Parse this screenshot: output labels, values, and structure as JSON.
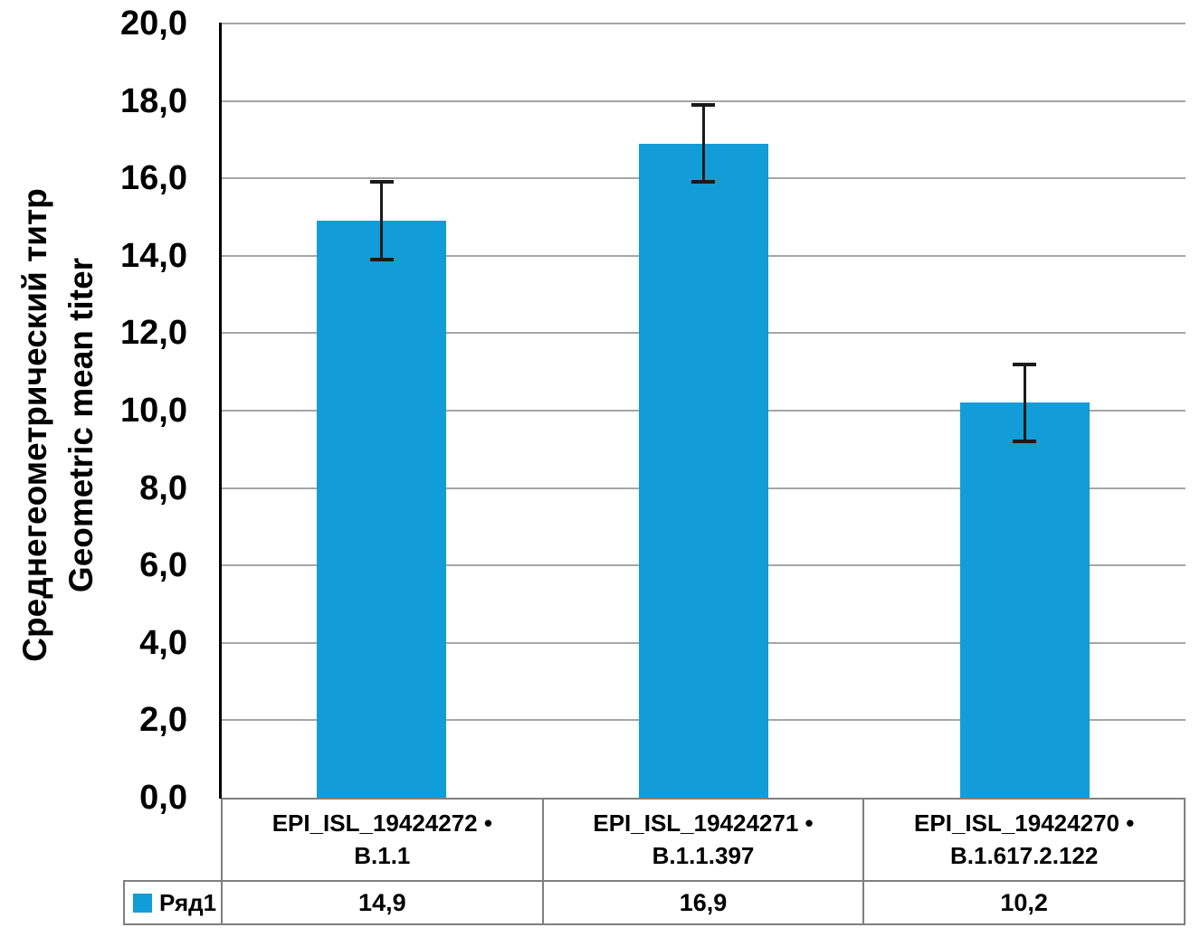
{
  "chart_data": {
    "type": "bar",
    "title": "",
    "ylabel_lines": [
      "Среднегеометрический титр",
      "Geometric mean titer"
    ],
    "xlabel": "",
    "categories": [
      {
        "line1": "EPI_ISL_19424272 •",
        "line2": "B.1.1"
      },
      {
        "line1": "EPI_ISL_19424271 •",
        "line2": "B.1.1.397"
      },
      {
        "line1": "EPI_ISL_19424270 •",
        "line2": "B.1.617.2.122"
      }
    ],
    "series": [
      {
        "name": "Ряд1",
        "values": [
          14.9,
          16.9,
          10.2
        ],
        "display_values": [
          "14,9",
          "16,9",
          "10,2"
        ],
        "errors": [
          1.0,
          1.0,
          1.0
        ]
      }
    ],
    "ylim": [
      0,
      20
    ],
    "ytick_step": 2,
    "yticks": [
      {
        "value": 20,
        "label": "20,0"
      },
      {
        "value": 18,
        "label": "18,0"
      },
      {
        "value": 16,
        "label": "16,0"
      },
      {
        "value": 14,
        "label": "14,0"
      },
      {
        "value": 12,
        "label": "12,0"
      },
      {
        "value": 10,
        "label": "10,0"
      },
      {
        "value": 8,
        "label": "8,0"
      },
      {
        "value": 6,
        "label": "6,0"
      },
      {
        "value": 4,
        "label": "4,0"
      },
      {
        "value": 2,
        "label": "2,0"
      },
      {
        "value": 0,
        "label": "0,0"
      }
    ],
    "grid": true,
    "legend_position": "bottom-table",
    "colors": {
      "bar": "#129cd8",
      "gridline": "#a6a6a6",
      "table_border": "#7f7f7f",
      "axis": "#000000",
      "text": "#000000",
      "background": "#ffffff"
    }
  }
}
